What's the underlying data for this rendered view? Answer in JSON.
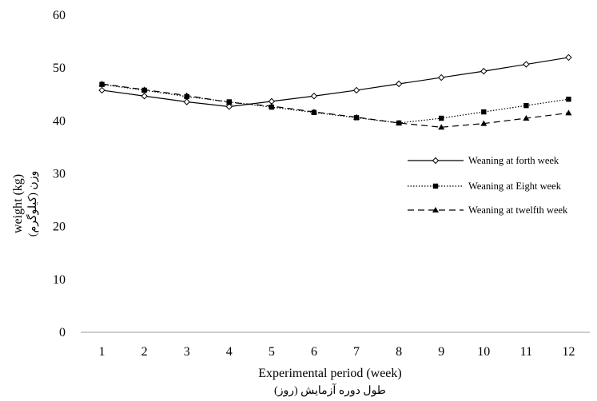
{
  "chart_data": {
    "type": "line",
    "x": [
      1,
      2,
      3,
      4,
      5,
      6,
      7,
      8,
      9,
      10,
      11,
      12
    ],
    "xlabel": "Experimental period (week)",
    "xlabel_secondary": "طول دوره آزمایش (روز)",
    "ylabel": "weight (kg)",
    "ylabel_secondary": "وزن (کیلوگرم)",
    "ylim": [
      0,
      60
    ],
    "yticks": [
      0,
      10,
      20,
      30,
      40,
      50,
      60
    ],
    "grid": false,
    "legend_position": "right",
    "series": [
      {
        "name": "Weaning at forth week",
        "line_style": "solid",
        "marker": "diamond-open",
        "values": [
          45.8,
          44.7,
          43.6,
          42.7,
          43.7,
          44.7,
          45.8,
          47.0,
          48.2,
          49.4,
          50.7,
          52.0
        ]
      },
      {
        "name": "Weaning at Eight week",
        "line_style": "dotted",
        "marker": "square",
        "values": [
          46.9,
          45.8,
          44.6,
          43.6,
          42.6,
          41.6,
          40.6,
          39.6,
          40.5,
          41.7,
          42.9,
          44.1
        ]
      },
      {
        "name": "Weaning at twelfth week",
        "line_style": "dashed",
        "marker": "triangle",
        "values": [
          47.0,
          45.9,
          44.8,
          43.5,
          42.8,
          41.7,
          40.7,
          39.6,
          38.8,
          39.5,
          40.5,
          41.5
        ]
      }
    ]
  }
}
